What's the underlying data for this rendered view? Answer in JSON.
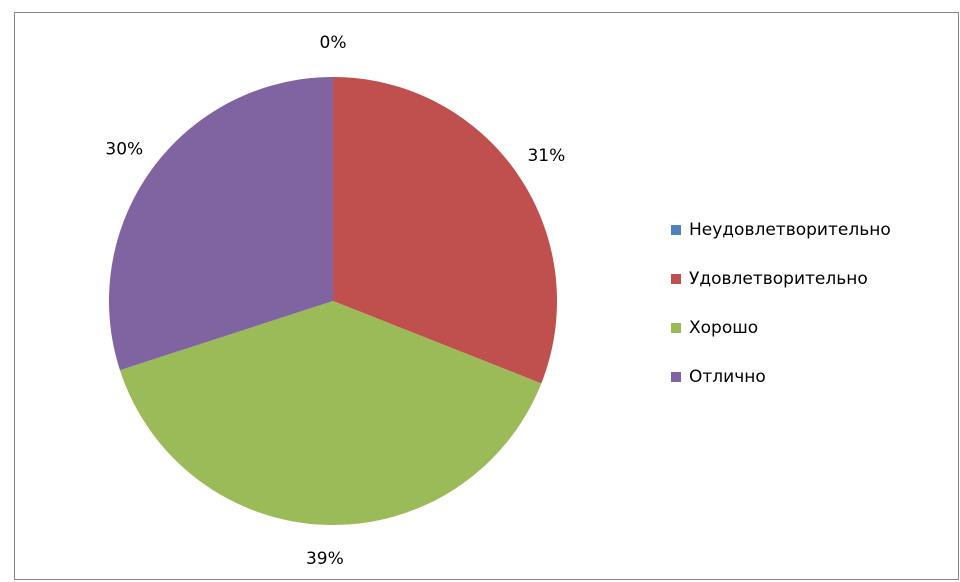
{
  "chart_data": {
    "type": "pie",
    "categories": [
      "Неудовлетворительно",
      "Удовлетворительно",
      "Хорошо",
      "Отлично"
    ],
    "values": [
      0,
      31,
      39,
      30
    ],
    "value_labels": [
      "0%",
      "31%",
      "39%",
      "30%"
    ],
    "colors": [
      "#4f81bd",
      "#c0504d",
      "#9bbb59",
      "#8064a2"
    ],
    "legend": "right"
  }
}
